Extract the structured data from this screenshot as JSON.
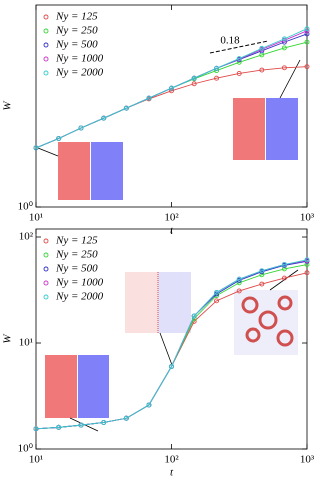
{
  "chart_data": [
    {
      "type": "line",
      "xscale": "log",
      "yscale": "log",
      "xlabel": "t",
      "ylabel": "W",
      "legend": "upper left",
      "xlim": [
        10,
        1000
      ],
      "ylim": [
        1,
        4
      ],
      "xticks": [
        {
          "value": 10,
          "label": "10¹"
        },
        {
          "value": 100,
          "label": "10²"
        },
        {
          "value": 1000,
          "label": "10³"
        }
      ],
      "yticks": [
        {
          "value": 1,
          "label": "10⁰"
        }
      ],
      "annotation": "0.18",
      "x": [
        10,
        14.7,
        21.5,
        31.6,
        46.4,
        68.1,
        100,
        147,
        215,
        316,
        464,
        681,
        1000
      ],
      "series": [
        {
          "name": "Ny = 125",
          "color": "#e04848",
          "values": [
            1.5,
            1.6,
            1.72,
            1.84,
            1.97,
            2.1,
            2.22,
            2.33,
            2.42,
            2.5,
            2.56,
            2.6,
            2.62
          ]
        },
        {
          "name": "Ny = 250",
          "color": "#33d633",
          "values": [
            1.5,
            1.6,
            1.72,
            1.84,
            1.97,
            2.11,
            2.26,
            2.41,
            2.55,
            2.7,
            2.84,
            2.98,
            3.1
          ]
        },
        {
          "name": "Ny = 500",
          "color": "#3030c8",
          "values": [
            1.5,
            1.6,
            1.72,
            1.84,
            1.97,
            2.11,
            2.26,
            2.42,
            2.59,
            2.75,
            2.92,
            3.1,
            3.28
          ]
        },
        {
          "name": "Ny = 1000",
          "color": "#cc33cc",
          "values": [
            1.5,
            1.6,
            1.72,
            1.84,
            1.97,
            2.11,
            2.26,
            2.42,
            2.59,
            2.76,
            2.95,
            3.14,
            3.35
          ]
        },
        {
          "name": "Ny = 2000",
          "color": "#33cccc",
          "values": [
            1.5,
            1.6,
            1.72,
            1.84,
            1.97,
            2.11,
            2.26,
            2.42,
            2.59,
            2.77,
            2.97,
            3.17,
            3.4
          ]
        }
      ]
    },
    {
      "type": "line",
      "xscale": "log",
      "yscale": "log",
      "xlabel": "t",
      "ylabel": "W",
      "legend": "upper left",
      "xlim": [
        10,
        1000
      ],
      "ylim": [
        1,
        119
      ],
      "xticks": [
        {
          "value": 10,
          "label": "10¹"
        },
        {
          "value": 100,
          "label": "10²"
        },
        {
          "value": 1000,
          "label": "10³"
        }
      ],
      "yticks": [
        {
          "value": 1,
          "label": "10⁰"
        },
        {
          "value": 10,
          "label": "10¹"
        },
        {
          "value": 100,
          "label": "10²"
        }
      ],
      "x": [
        10,
        14.7,
        21.5,
        31.6,
        46.4,
        68.1,
        100,
        147,
        215,
        316,
        464,
        681,
        1000
      ],
      "series": [
        {
          "name": "Ny = 125",
          "color": "#e04848",
          "values": [
            1.55,
            1.6,
            1.68,
            1.78,
            1.95,
            2.6,
            6.0,
            16,
            25,
            31,
            36,
            41,
            46
          ]
        },
        {
          "name": "Ny = 250",
          "color": "#33d633",
          "values": [
            1.55,
            1.6,
            1.68,
            1.78,
            1.95,
            2.6,
            6.0,
            17,
            28,
            37,
            44,
            50,
            55
          ]
        },
        {
          "name": "Ny = 500",
          "color": "#3030c8",
          "values": [
            1.55,
            1.6,
            1.68,
            1.78,
            1.95,
            2.6,
            6.0,
            18,
            29,
            39,
            47,
            54,
            59
          ]
        },
        {
          "name": "Ny = 1000",
          "color": "#cc33cc",
          "values": [
            1.55,
            1.6,
            1.68,
            1.78,
            1.95,
            2.6,
            6.0,
            18,
            30,
            40,
            48,
            55,
            60
          ]
        },
        {
          "name": "Ny = 2000",
          "color": "#33cccc",
          "values": [
            1.55,
            1.6,
            1.68,
            1.78,
            1.95,
            2.6,
            6.0,
            18,
            30,
            40,
            48,
            55,
            61
          ]
        }
      ]
    }
  ]
}
